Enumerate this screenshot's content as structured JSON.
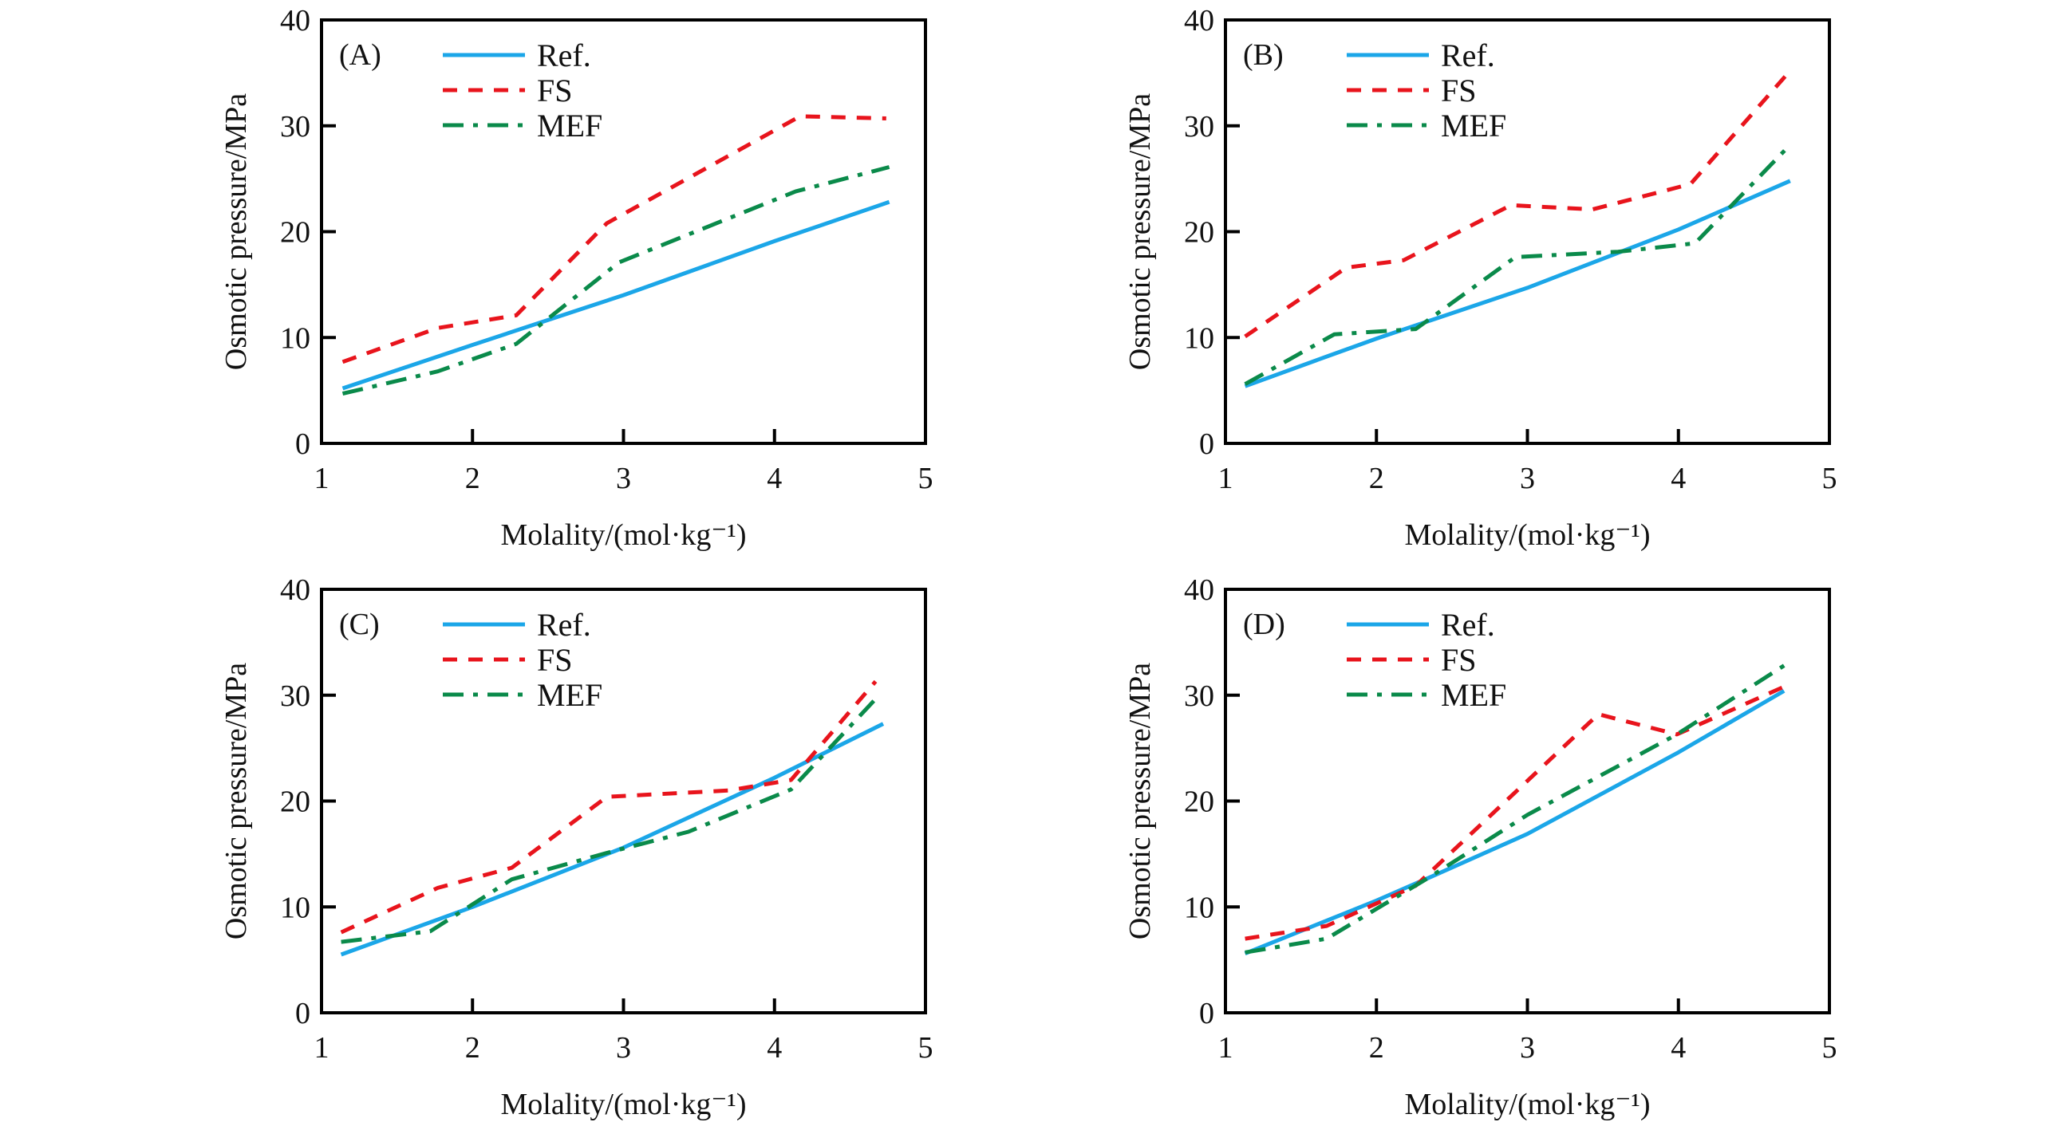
{
  "chart_data": [
    {
      "type": "line",
      "panel_label": "(A)",
      "xlabel": "Molality/(mol·kg⁻¹)",
      "ylabel": "Osmotic pressure/MPa",
      "xlim": [
        1,
        5
      ],
      "ylim": [
        0,
        40
      ],
      "xticks": [
        "1",
        "2",
        "3",
        "4",
        "5"
      ],
      "yticks": [
        "0",
        "10",
        "20",
        "30",
        "40"
      ],
      "grid": false,
      "legend_position": "top-left",
      "series": [
        {
          "name": "Ref.",
          "style": "solid",
          "color": "#1BA6E8",
          "x": [
            1.14,
            2.0,
            3.0,
            4.0,
            4.76
          ],
          "y": [
            5.2,
            9.3,
            14.0,
            19.1,
            22.8
          ]
        },
        {
          "name": "FS",
          "style": "dashed",
          "color": "#E8141C",
          "x": [
            1.14,
            1.77,
            2.29,
            2.89,
            4.03,
            4.17,
            4.74
          ],
          "y": [
            7.7,
            10.9,
            12.1,
            20.8,
            29.8,
            30.9,
            30.7
          ]
        },
        {
          "name": "MEF",
          "style": "dashdot",
          "color": "#0A8A4A",
          "x": [
            1.14,
            1.77,
            2.29,
            2.97,
            4.14,
            4.76
          ],
          "y": [
            4.7,
            6.8,
            9.4,
            17.1,
            23.8,
            26.1
          ]
        }
      ]
    },
    {
      "type": "line",
      "panel_label": "(B)",
      "xlabel": "Molality/(mol·kg⁻¹)",
      "ylabel": "Osmotic pressure/MPa",
      "xlim": [
        1,
        5
      ],
      "ylim": [
        0,
        40
      ],
      "xticks": [
        "1",
        "2",
        "3",
        "4",
        "5"
      ],
      "yticks": [
        "0",
        "10",
        "20",
        "30",
        "40"
      ],
      "grid": false,
      "legend_position": "top-left",
      "series": [
        {
          "name": "Ref.",
          "style": "solid",
          "color": "#1BA6E8",
          "x": [
            1.13,
            1.67,
            2.0,
            3.0,
            4.0,
            4.74
          ],
          "y": [
            5.4,
            8.2,
            9.9,
            14.7,
            20.2,
            24.8
          ]
        },
        {
          "name": "FS",
          "style": "dashed",
          "color": "#E8141C",
          "x": [
            1.13,
            1.8,
            2.18,
            2.89,
            3.43,
            4.08,
            4.74
          ],
          "y": [
            10.1,
            16.6,
            17.3,
            22.5,
            22.1,
            24.5,
            35.2
          ]
        },
        {
          "name": "MEF",
          "style": "dashdot",
          "color": "#0A8A4A",
          "x": [
            1.13,
            1.72,
            2.26,
            2.92,
            3.6,
            4.11,
            4.74
          ],
          "y": [
            5.6,
            10.3,
            10.8,
            17.6,
            18.1,
            18.9,
            28.2
          ]
        }
      ]
    },
    {
      "type": "line",
      "panel_label": "(C)",
      "xlabel": "Molality/(mol·kg⁻¹)",
      "ylabel": "Osmotic pressure/MPa",
      "xlim": [
        1,
        5
      ],
      "ylim": [
        0,
        40
      ],
      "xticks": [
        "1",
        "2",
        "3",
        "4",
        "5"
      ],
      "yticks": [
        "0",
        "10",
        "20",
        "30",
        "40"
      ],
      "grid": false,
      "legend_position": "top-left",
      "series": [
        {
          "name": "Ref.",
          "style": "solid",
          "color": "#1BA6E8",
          "x": [
            1.13,
            2.0,
            3.0,
            4.0,
            4.72
          ],
          "y": [
            5.5,
            10.0,
            15.6,
            22.2,
            27.3
          ]
        },
        {
          "name": "FS",
          "style": "dashed",
          "color": "#E8141C",
          "x": [
            1.13,
            1.77,
            2.26,
            2.89,
            3.7,
            4.11,
            4.67
          ],
          "y": [
            7.6,
            11.8,
            13.7,
            20.4,
            21.0,
            22.0,
            31.3
          ]
        },
        {
          "name": "MEF",
          "style": "dashdot",
          "color": "#0A8A4A",
          "x": [
            1.13,
            1.72,
            2.26,
            2.89,
            3.43,
            4.11,
            4.7
          ],
          "y": [
            6.7,
            7.7,
            12.6,
            15.1,
            17.1,
            21.1,
            30.1
          ]
        }
      ]
    },
    {
      "type": "line",
      "panel_label": "(D)",
      "xlabel": "Molality/(mol·kg⁻¹)",
      "ylabel": "Osmotic pressure/MPa",
      "xlim": [
        1,
        5
      ],
      "ylim": [
        0,
        40
      ],
      "xticks": [
        "1",
        "2",
        "3",
        "4",
        "5"
      ],
      "yticks": [
        "0",
        "10",
        "20",
        "30",
        "40"
      ],
      "grid": false,
      "legend_position": "top-left",
      "series": [
        {
          "name": "Ref.",
          "style": "solid",
          "color": "#1BA6E8",
          "x": [
            1.13,
            2.0,
            2.37,
            3.0,
            4.0,
            4.7
          ],
          "y": [
            5.6,
            10.6,
            12.9,
            16.9,
            24.6,
            30.4
          ]
        },
        {
          "name": "FS",
          "style": "dashed",
          "color": "#E8141C",
          "x": [
            1.13,
            1.67,
            2.26,
            3.47,
            3.99,
            4.7
          ],
          "y": [
            7.0,
            8.2,
            12.0,
            28.2,
            26.3,
            30.8
          ]
        },
        {
          "name": "MEF",
          "style": "dashdot",
          "color": "#0A8A4A",
          "x": [
            1.13,
            1.67,
            2.35,
            3.0,
            3.99,
            4.7
          ],
          "y": [
            5.7,
            7.0,
            12.8,
            18.7,
            26.3,
            32.8
          ]
        }
      ]
    }
  ]
}
